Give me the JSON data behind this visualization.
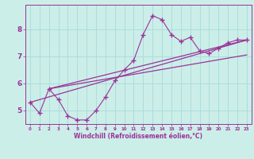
{
  "background_color": "#cceee8",
  "grid_color": "#aadddd",
  "line_color": "#993399",
  "marker": "+",
  "marker_size": 4,
  "marker_lw": 1.0,
  "xlabel": "Windchill (Refroidissement éolien,°C)",
  "xlim": [
    -0.5,
    23.5
  ],
  "ylim": [
    4.5,
    8.9
  ],
  "xticks": [
    0,
    1,
    2,
    3,
    4,
    5,
    6,
    7,
    8,
    9,
    10,
    11,
    12,
    13,
    14,
    15,
    16,
    17,
    18,
    19,
    20,
    21,
    22,
    23
  ],
  "yticks": [
    5,
    6,
    7,
    8
  ],
  "curve1_x": [
    0,
    1,
    2,
    3,
    4,
    5,
    6,
    7,
    8,
    9,
    10,
    11,
    12,
    13,
    14,
    15,
    16,
    17,
    18,
    19,
    20,
    21,
    22,
    23
  ],
  "curve1_y": [
    5.3,
    4.9,
    5.8,
    5.4,
    4.8,
    4.65,
    4.65,
    5.0,
    5.5,
    6.1,
    6.5,
    6.85,
    7.8,
    8.5,
    8.35,
    7.8,
    7.55,
    7.7,
    7.2,
    7.1,
    7.3,
    7.5,
    7.6,
    7.6
  ],
  "curve2_x": [
    0,
    23
  ],
  "curve2_y": [
    5.3,
    7.6
  ],
  "curve3_x": [
    2,
    23
  ],
  "curve3_y": [
    5.8,
    7.6
  ],
  "curve4_x": [
    2,
    23
  ],
  "curve4_y": [
    5.8,
    7.05
  ]
}
